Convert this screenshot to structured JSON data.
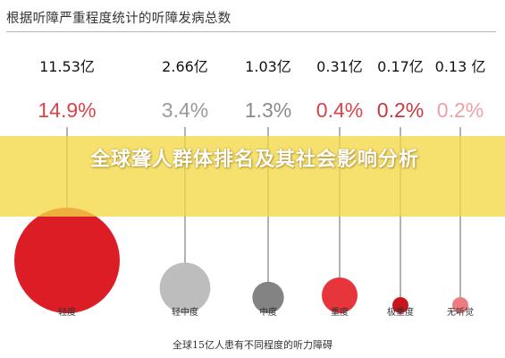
{
  "header": {
    "title": "根据听障严重程度统计的听障发病总数"
  },
  "banner": {
    "text": "全球聋人群体排名及其社会影响分析"
  },
  "chart_data": {
    "type": "bubble",
    "title": "根据听障严重程度统计的听障发病总数",
    "xlabel": "全球15亿人患有不同程度的听力障碍",
    "categories": [
      "轻度",
      "轻中度",
      "中度",
      "重度",
      "极重度",
      "无听觉"
    ],
    "series": [
      {
        "values": [
          11.53,
          2.66,
          1.03,
          0.31,
          0.17,
          0.13
        ],
        "value_labels": [
          "11.53亿",
          "2.66亿",
          "1.03亿",
          "0.31亿",
          "0.17亿",
          "0.13 亿"
        ],
        "percent_labels": [
          "14.9%",
          "3.4%",
          "1.3%",
          "0.4%",
          "0.2%",
          "0.2%"
        ],
        "colors": [
          "#dc1d25",
          "#bdbdbd",
          "#838383",
          "#e6353b",
          "#c8141b",
          "#ec7c82"
        ]
      }
    ],
    "percent_label_colors": [
      "#d9434a",
      "#9a9a9a",
      "#8a8a8a",
      "#d9434a",
      "#c8383e",
      "#eea0a4"
    ],
    "legend": "none",
    "grid": false
  }
}
